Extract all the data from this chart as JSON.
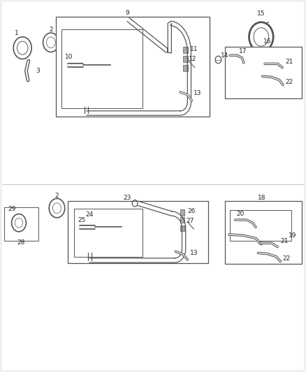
{
  "background_color": "#f0f0f0",
  "figure_width": 4.38,
  "figure_height": 5.33,
  "dpi": 100,
  "line_color": "#555555",
  "text_color": "#222222",
  "font_size": 7.0
}
